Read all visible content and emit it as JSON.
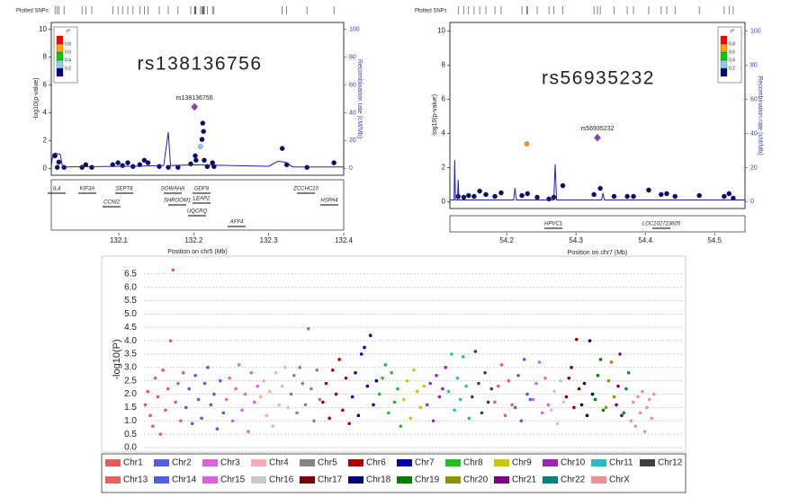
{
  "chart_data": [
    {
      "type": "scatter",
      "title": "rs138136756",
      "snp_track_label": "Plotted SNPs",
      "ylabel": "-log10(p-value)",
      "y2label": "Recombination rate (cM/Mb)",
      "xlabel": "Position on chr5 (Mb)",
      "xlim": [
        132.01,
        132.4
      ],
      "ylim": [
        -0.5,
        10.5
      ],
      "y2lim": [
        -5,
        105
      ],
      "xticks": [
        132.1,
        132.2,
        132.3,
        132.4
      ],
      "yticks": [
        0,
        2,
        4,
        6,
        8,
        10
      ],
      "y2ticks": [
        0,
        20,
        40,
        60,
        80,
        100
      ],
      "r2_legend": {
        "title": "r²",
        "ticks": [
          0.2,
          0.4,
          0.6,
          0.8
        ],
        "colors": [
          "#000080",
          "#87ceeb",
          "#00cc00",
          "#ffa500",
          "#ff0000"
        ]
      },
      "series": [
        {
          "color": "#0b0b6e",
          "x": [
            132.015,
            132.02,
            132.018,
            132.027,
            132.051,
            132.056,
            132.064,
            132.092,
            132.099,
            132.105,
            132.112,
            132.119,
            132.128,
            132.134,
            132.139,
            132.154,
            132.166,
            132.179,
            132.196,
            132.202,
            132.203,
            132.211,
            132.212,
            132.213,
            132.214,
            132.218,
            132.225,
            132.227,
            132.318,
            132.324,
            132.351,
            132.387
          ],
          "values": [
            0.9,
            0.45,
            0.07,
            0.07,
            0.07,
            0.26,
            0.07,
            0.26,
            0.4,
            0.2,
            0.4,
            0.13,
            0.26,
            0.58,
            0.4,
            0.13,
            0.07,
            0.07,
            0.32,
            0.9,
            0.58,
            2.08,
            3.25,
            2.66,
            0.58,
            0.13,
            0.4,
            0.13,
            1.43,
            0.26,
            0.07,
            0.4
          ]
        },
        {
          "color": "#87cefa",
          "x": [
            132.209
          ],
          "values": [
            1.56
          ]
        },
        {
          "color": "#8b3fc4",
          "marker": "diamond",
          "label": "rs138136756",
          "x": [
            132.201
          ],
          "values": [
            4.42
          ]
        },
        {
          "axis": "y2",
          "color": "#2020c0",
          "x": [
            132.01,
            132.012,
            132.015,
            132.022,
            132.025,
            132.12,
            132.16,
            132.163,
            132.166,
            132.169,
            132.2,
            132.3,
            132.312,
            132.322,
            132.332,
            132.4
          ],
          "values": [
            1,
            10,
            11,
            10,
            1,
            1.5,
            2,
            14,
            26,
            2,
            2.5,
            1.5,
            5,
            4.5,
            1,
            1
          ]
        }
      ],
      "genes": [
        "IL4",
        "KIF3A",
        "SEPT8",
        "CCNI2",
        "SOWAHA",
        "SHROOM1",
        "GDF9",
        "LEAP2",
        "UQCRQ",
        "AFF4",
        "ZCCHC10",
        "HSPA4"
      ]
    },
    {
      "type": "scatter",
      "title": "rs56935232",
      "snp_track_label": "Plotted SNPs",
      "ylabel": "-log10(p-value)",
      "y2label": "Recombination rate (cM/Mb)",
      "xlabel": "Position on chr7 (Mb)",
      "xlim": [
        54.118,
        54.544
      ],
      "ylim": [
        -0.4,
        10.5
      ],
      "y2lim": [
        -4,
        105
      ],
      "xticks": [
        54.2,
        54.3,
        54.4,
        54.5
      ],
      "yticks": [
        0,
        2,
        4,
        6,
        8,
        10
      ],
      "y2ticks": [
        0,
        20,
        40,
        60,
        80,
        100
      ],
      "r2_legend": {
        "title": "r²",
        "ticks": [
          0.2,
          0.4,
          0.6,
          0.8
        ],
        "colors": [
          "#000080",
          "#87ceeb",
          "#00cc00",
          "#ffa500",
          "#ff0000"
        ]
      },
      "series": [
        {
          "color": "#0b0b6e",
          "x": [
            54.13,
            54.138,
            54.145,
            54.153,
            54.161,
            54.17,
            54.183,
            54.192,
            54.222,
            54.23,
            54.244,
            54.261,
            54.268,
            54.281,
            54.326,
            54.335,
            54.355,
            54.374,
            54.383,
            54.405,
            54.423,
            54.431,
            54.443,
            54.478,
            54.514,
            54.521,
            54.527
          ],
          "values": [
            0.31,
            0.26,
            0.36,
            0.31,
            0.62,
            0.42,
            0.31,
            0.52,
            0.36,
            0.47,
            0.26,
            0.16,
            0.26,
            0.94,
            0.42,
            0.78,
            0.31,
            0.31,
            0.31,
            0.68,
            0.42,
            0.47,
            0.31,
            0.36,
            0.31,
            0.47,
            0.21
          ]
        },
        {
          "color": "#f0a020",
          "x": [
            54.229
          ],
          "values": [
            3.39
          ]
        },
        {
          "color": "#8b3fc4",
          "marker": "diamond",
          "label": "rs56935232",
          "x": [
            54.331
          ],
          "values": [
            3.75
          ]
        },
        {
          "axis": "y2",
          "color": "#2020c0",
          "x": [
            54.118,
            54.124,
            54.125,
            54.126,
            54.129,
            54.13,
            54.131,
            54.21,
            54.212,
            54.214,
            54.268,
            54.27,
            54.272,
            54.337,
            54.339,
            54.341,
            54.544
          ],
          "values": [
            1,
            1,
            24.5,
            1,
            1,
            13,
            1,
            1,
            8,
            1,
            1,
            22,
            1,
            1,
            5,
            1,
            1
          ]
        }
      ],
      "genes": [
        "HPVC1",
        "LOC102723605"
      ]
    },
    {
      "type": "manhattan",
      "ylabel": "-log10(P)",
      "ylim": [
        0,
        7
      ],
      "grid": true,
      "yticks": [
        {
          "value": 0,
          "label": "0.0"
        },
        0.5,
        {
          "value": 1,
          "label": "1.0"
        },
        1.5,
        {
          "value": 2,
          "label": "2.0"
        },
        2.5,
        {
          "value": 3,
          "label": "3.0"
        },
        3.5,
        {
          "value": 4,
          "label": "4.0"
        },
        4.5,
        {
          "value": 5,
          "label": "5.0"
        },
        5.5,
        {
          "value": 6,
          "label": "6.0"
        },
        6.5
      ],
      "series": [
        {
          "name": "Chr1",
          "color": "#e85a5a",
          "values": [
            1.6,
            2.1,
            1.2,
            0.8,
            2.6,
            1.9,
            0.5,
            2.9,
            1.4,
            2.2,
            4.0,
            6.65,
            1.7,
            2.4,
            1.0,
            2.8
          ]
        },
        {
          "name": "Chr2",
          "color": "#5a5ae8",
          "values": [
            1.5,
            2.2,
            0.9,
            2.7,
            1.8,
            1.1,
            2.4,
            3.0,
            1.6,
            2.0,
            0.7,
            2.5,
            1.3
          ]
        },
        {
          "name": "Chr3",
          "color": "#e060e0",
          "values": [
            1.8,
            2.6,
            1.0,
            2.2,
            3.1,
            1.4,
            2.0,
            0.6,
            2.8,
            1.7,
            2.3
          ]
        },
        {
          "name": "Chr4",
          "color": "#f4b0b0",
          "values": [
            1.9,
            2.5,
            1.2,
            2.1,
            0.8,
            2.8,
            1.6,
            2.3,
            3.0,
            1.5
          ]
        },
        {
          "name": "Chr5",
          "color": "#858585",
          "values": [
            2.0,
            2.7,
            1.3,
            3.0,
            2.4,
            1.6,
            4.45,
            2.2,
            1.0,
            2.9,
            1.8
          ]
        },
        {
          "name": "Chr6",
          "color": "#b00000",
          "values": [
            1.7,
            2.4,
            1.1,
            2.9,
            2.0,
            3.3,
            1.4,
            2.6,
            0.9
          ]
        },
        {
          "name": "Chr7",
          "color": "#0000b0",
          "values": [
            1.9,
            2.8,
            1.2,
            3.5,
            3.75,
            2.3,
            4.2,
            1.6,
            2.5
          ]
        },
        {
          "name": "Chr8",
          "color": "#20c020",
          "values": [
            2.0,
            2.6,
            3.1,
            1.3,
            2.8,
            1.7,
            2.2,
            0.8
          ]
        },
        {
          "name": "Chr9",
          "color": "#c8c800",
          "values": [
            1.8,
            2.5,
            1.1,
            2.9,
            2.1,
            1.5,
            2.3
          ]
        },
        {
          "name": "Chr10",
          "color": "#a020c0",
          "values": [
            1.6,
            2.4,
            1.0,
            2.7,
            1.9,
            2.2,
            3.0
          ]
        },
        {
          "name": "Chr11",
          "color": "#20c0c0",
          "values": [
            2.1,
            3.5,
            1.4,
            2.6,
            1.8,
            3.4,
            2.3,
            1.1
          ]
        },
        {
          "name": "Chr12",
          "color": "#404040",
          "values": [
            1.9,
            3.6,
            2.4,
            1.3,
            2.8,
            1.7,
            2.2
          ]
        },
        {
          "name": "Chr13",
          "color": "#e86060",
          "values": [
            1.7,
            2.3,
            3.1,
            1.2,
            2.5,
            1.6
          ]
        },
        {
          "name": "Chr14",
          "color": "#5060e0",
          "values": [
            1.5,
            2.7,
            1.0,
            3.3,
            2.0,
            1.8
          ]
        },
        {
          "name": "Chr15",
          "color": "#e060e0",
          "values": [
            1.8,
            2.4,
            3.2,
            1.3,
            2.6,
            1.6
          ]
        },
        {
          "name": "Chr16",
          "color": "#c8c8c8",
          "values": [
            1.4,
            2.1,
            0.9,
            2.5,
            1.7
          ]
        },
        {
          "name": "Chr17",
          "color": "#800000",
          "values": [
            1.9,
            2.6,
            3.0,
            1.5,
            4.05,
            2.2
          ]
        },
        {
          "name": "Chr18",
          "color": "#000080",
          "values": [
            1.6,
            2.4,
            1.2,
            4.0,
            2.0
          ]
        },
        {
          "name": "Chr19",
          "color": "#008000",
          "values": [
            1.8,
            2.7,
            3.3,
            1.4
          ]
        },
        {
          "name": "Chr20",
          "color": "#909000",
          "values": [
            1.5,
            2.5,
            3.2,
            1.9
          ]
        },
        {
          "name": "Chr21",
          "color": "#800080",
          "values": [
            1.6,
            2.3,
            3.5,
            1.2
          ]
        },
        {
          "name": "Chr22",
          "color": "#008080",
          "values": [
            1.3,
            2.2,
            2.8
          ]
        },
        {
          "name": "ChrX",
          "color": "#f09090",
          "values": [
            1.0,
            1.7,
            0.8,
            1.9,
            1.3,
            2.1,
            0.6,
            1.5,
            1.8,
            1.1,
            2.0
          ]
        }
      ]
    }
  ]
}
